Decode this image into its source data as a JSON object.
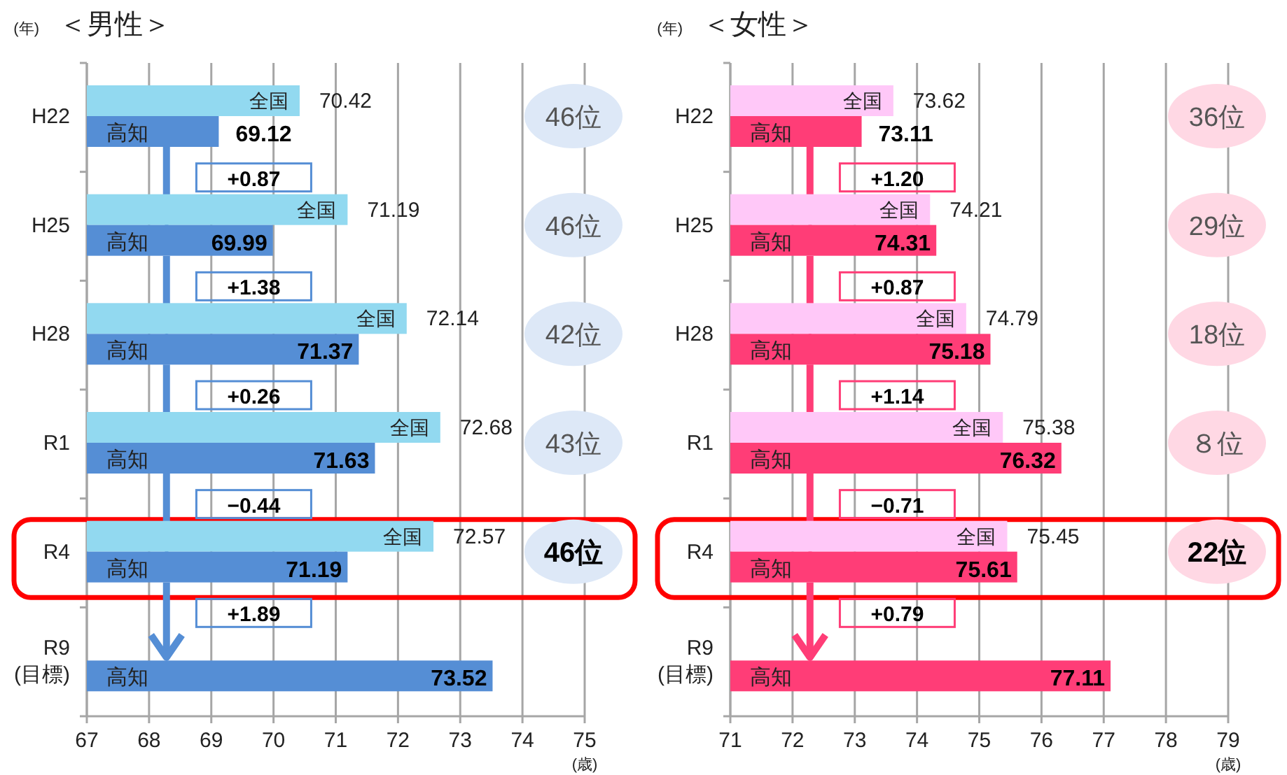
{
  "chart_data": [
    {
      "type": "bar",
      "orientation": "horizontal",
      "title": "＜男性＞",
      "ylabel": "(年)",
      "xlabel": "(歳)",
      "categories": [
        "H22",
        "H25",
        "H28",
        "R1",
        "R4",
        "R9 (目標)"
      ],
      "xlim": [
        67,
        75
      ],
      "xticks": [
        67,
        68,
        69,
        70,
        71,
        72,
        73,
        74,
        75
      ],
      "grid": "x",
      "data_labels": true,
      "series": [
        {
          "name": "全国",
          "color": "#92d9f0",
          "values": [
            70.42,
            71.19,
            72.14,
            72.68,
            72.57,
            null
          ]
        },
        {
          "name": "高知",
          "color": "#558ed5",
          "values": [
            69.12,
            69.99,
            71.37,
            71.63,
            71.19,
            73.52
          ]
        }
      ],
      "annotations": [
        "46位",
        "46位",
        "42位",
        "43位",
        "46位",
        "+0.87",
        "+1.38",
        "+0.26",
        "−0.44",
        "+1.89"
      ]
    },
    {
      "type": "bar",
      "orientation": "horizontal",
      "title": "＜女性＞",
      "ylabel": "(年)",
      "xlabel": "(歳)",
      "categories": [
        "H22",
        "H25",
        "H28",
        "R1",
        "R4",
        "R9 (目標)"
      ],
      "xlim": [
        71,
        79
      ],
      "xticks": [
        71,
        72,
        73,
        74,
        75,
        76,
        77,
        78,
        79
      ],
      "grid": "x",
      "data_labels": true,
      "series": [
        {
          "name": "全国",
          "color": "#ffc8f8",
          "values": [
            73.62,
            74.21,
            74.79,
            75.38,
            75.45,
            null
          ]
        },
        {
          "name": "高知",
          "color": "#ff3d77",
          "values": [
            73.11,
            74.31,
            75.18,
            76.32,
            75.61,
            77.11
          ]
        }
      ],
      "annotations": [
        "36位",
        "29位",
        "18位",
        "８位",
        "22位",
        "+1.20",
        "+0.87",
        "+1.14",
        "−0.71",
        "+0.79"
      ]
    }
  ]
}
